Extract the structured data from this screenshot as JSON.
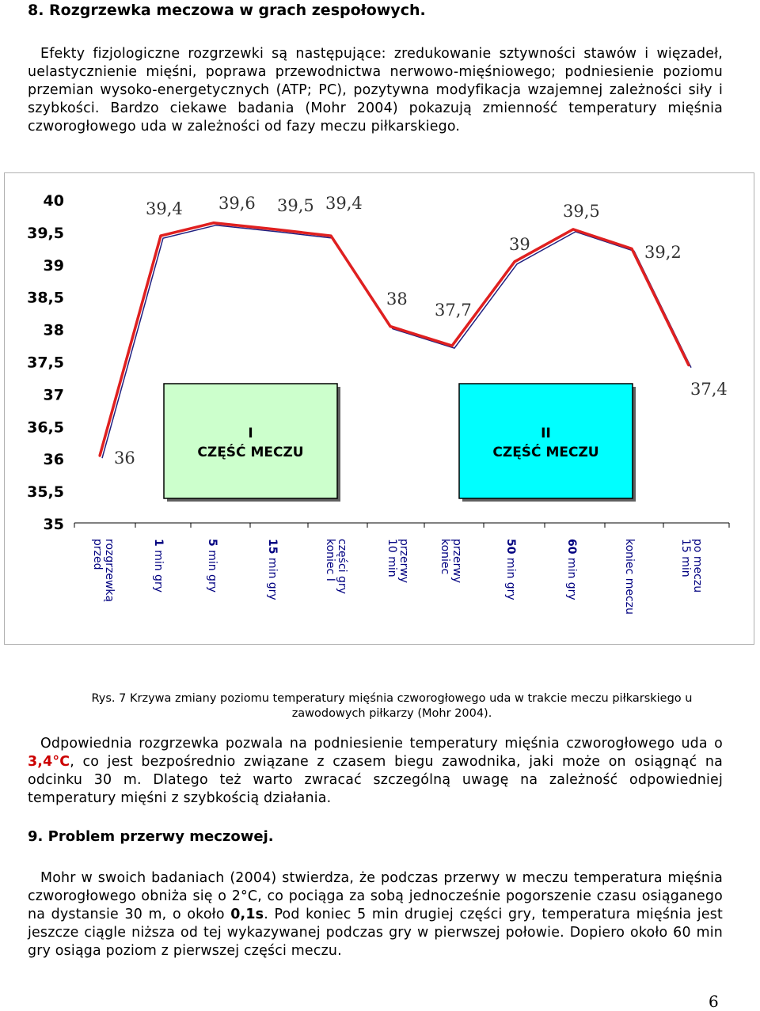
{
  "section8": {
    "title": "8. Rozgrzewka meczowa w grach zespołowych.",
    "paragraph": "Efekty fizjologiczne rozgrzewki są następujące: zredukowanie sztywności stawów i więzadeł, uelastycznienie mięśni, poprawa przewodnictwa nerwowo-mięśniowego; podniesienie poziomu przemian wysoko-energetycznych (ATP; PC), pozytywna modyfikacja wzajemnej zależności siły i szybkości. Bardzo ciekawe badania (Mohr 2004) pokazują zmienność temperatury mięśnia czworogłowego uda w zależności od fazy meczu piłkarskiego."
  },
  "figure": {
    "caption": "Rys. 7 Krzywa zmiany poziomu temperatury mięśnia czworogłowego uda w trakcie meczu piłkarskiego u zawodowych piłkarzy (Mohr 2004).",
    "box1": {
      "line1": "I",
      "line2": "CZĘŚĆ MECZU",
      "color": "#ccffcc"
    },
    "box2": {
      "line1": "II",
      "line2": "CZĘŚĆ MECZU",
      "color": "#00ffff"
    }
  },
  "chart_data": {
    "type": "line",
    "categories": [
      "przed rozgrzewką",
      "1 min gry",
      "5 min gry",
      "15 min gry",
      "koniec I części gry",
      "10 min przerwy",
      "koniec przerwy",
      "50 min gry",
      "60 min gry",
      "koniec meczu",
      "15 min po meczu"
    ],
    "series": [
      {
        "values": [
          36,
          39.4,
          39.6,
          39.5,
          39.4,
          38,
          37.7,
          39,
          39.5,
          39.2,
          37.4
        ],
        "color": "#e02020"
      }
    ],
    "data_labels": [
      "36",
      "39,4",
      "39,6",
      "39,5",
      "39,4",
      "38",
      "37,7",
      "39",
      "39,5",
      "39,2",
      "37,4"
    ],
    "ylim": [
      35,
      40
    ],
    "yticks": [
      "35",
      "35,5",
      "36",
      "36,5",
      "37",
      "37,5",
      "38",
      "38,5",
      "39",
      "39,5",
      "40"
    ],
    "xlabel": "",
    "ylabel": "",
    "grid": false
  },
  "body2": {
    "lead": "Odpowiednia rozgrzewka pozwala na podniesienie temperatury mięśnia czworogłowego uda o ",
    "value": "3,4°C",
    "rest": ", co jest bezpośrednio związane z czasem biegu zawodnika, jaki może on osiągnąć na odcinku 30 m. Dlatego też warto zwracać szczególną uwagę na zależność odpowiedniej temperatury mięśni z szybkością działania."
  },
  "section9": {
    "title": "9. Problem przerwy meczowej.",
    "p1": "Mohr w swoich badaniach (2004) stwierdza, że podczas przerwy w meczu temperatura mięśnia czworogłowego obniża się o 2°C, co pociąga za sobą jednocześnie pogorszenie czasu osiąganego na dystansie 30 m, o około ",
    "value": "0,1s",
    "p2": ". Pod koniec 5 min drugiej części gry, temperatura mięśnia jest jeszcze ciągle niższa od tej wykazywanej podczas gry w pierwszej połowie. Dopiero około 60 min gry osiąga poziom z pierwszej części meczu."
  },
  "page_number": "6"
}
